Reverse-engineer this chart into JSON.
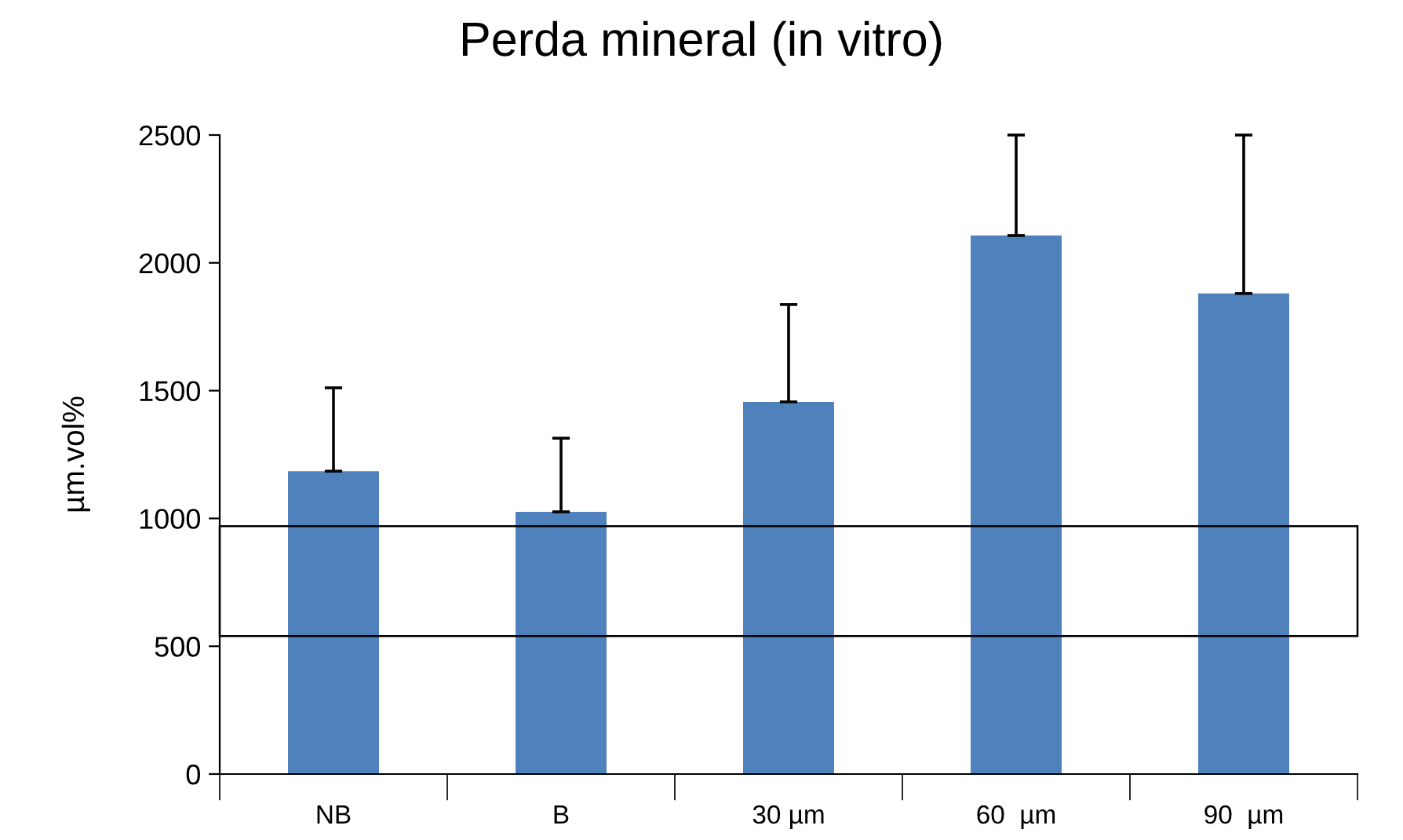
{
  "chart_data": {
    "type": "bar",
    "title": "Perda mineral (in vitro)",
    "ylabel": "µm.vol%",
    "categories": [
      "NB",
      "B",
      "30 µm",
      "60  µm",
      "90  µm"
    ],
    "values": [
      1185,
      1026,
      1456,
      2107,
      1880
    ],
    "errors": [
      [
        1185,
        1511
      ],
      [
        1026,
        1314
      ],
      [
        1456,
        1837
      ],
      [
        2107,
        2500
      ],
      [
        1880,
        2500
      ]
    ],
    "color": "#4f81bd",
    "ylim": [
      0,
      2500
    ],
    "yticks": [
      0,
      500,
      1000,
      1500,
      2000,
      2500
    ],
    "grid": false
  }
}
